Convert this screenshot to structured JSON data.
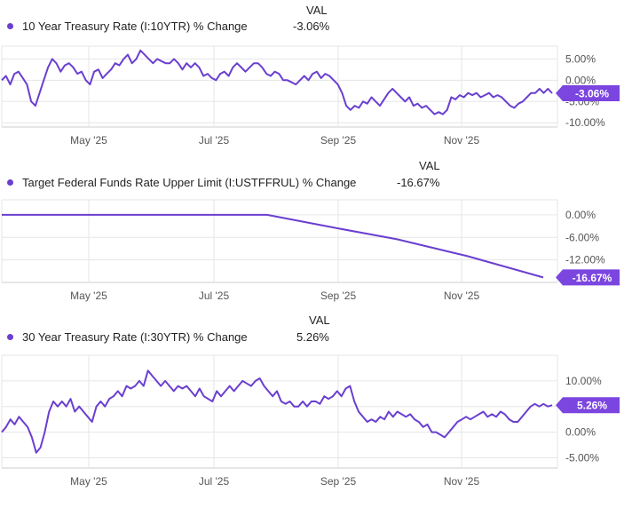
{
  "colors": {
    "line": "#6a3fd0",
    "badge": "#7b45e0",
    "grid": "#e6e6e6",
    "axis": "#555555"
  },
  "val_header": "VAL",
  "x_ticks": [
    "May '25",
    "Jul '25",
    "Sep '25",
    "Nov '25"
  ],
  "chart_data": [
    {
      "type": "line",
      "series": [
        {
          "name": "10 Year Treasury Rate (I:10YTR) % Change",
          "last_value": "-3.06%"
        }
      ],
      "y_ticks": [
        "5.00%",
        "0.00%",
        "-5.00%",
        "-10.00%"
      ],
      "y_tick_values": [
        5,
        0,
        -5,
        -10
      ],
      "ylim": [
        -11,
        8
      ],
      "x_ticks": [
        "May '25",
        "Jul '25",
        "Sep '25",
        "Nov '25"
      ],
      "values": [
        0,
        1,
        -1,
        1.5,
        2,
        0.5,
        -1,
        -5,
        -6,
        -3,
        0,
        3,
        5,
        4,
        2,
        3.5,
        4,
        3,
        1.5,
        2,
        0,
        -1,
        2,
        2.5,
        0.5,
        1.5,
        2.5,
        4,
        3.5,
        5,
        6,
        4,
        5,
        7,
        6,
        5,
        4,
        5,
        4.5,
        4,
        4,
        5,
        4,
        2.5,
        4,
        3,
        4,
        3,
        1,
        1.5,
        0.5,
        0,
        1.5,
        2,
        1,
        3,
        4,
        3,
        2,
        3,
        4,
        4,
        3,
        1.5,
        1,
        2,
        1.5,
        0,
        0,
        -0.5,
        -1,
        0,
        1,
        0,
        1.5,
        2,
        0.5,
        1.5,
        1,
        0,
        -1,
        -3,
        -6,
        -7,
        -6,
        -6.5,
        -5,
        -5.5,
        -4,
        -5,
        -6,
        -4.5,
        -3,
        -2,
        -3,
        -4,
        -5,
        -4,
        -6,
        -5.5,
        -6.5,
        -6,
        -7,
        -8,
        -7.5,
        -8,
        -7,
        -4,
        -4.5,
        -3.5,
        -4,
        -3,
        -3.5,
        -3,
        -4,
        -3.5,
        -3,
        -4,
        -3.5,
        -4,
        -5,
        -6,
        -6.5,
        -5.5,
        -5,
        -4,
        -3,
        -3,
        -2,
        -3,
        -2,
        -3.06
      ],
      "label_values": {
        "x": "",
        "y": ""
      }
    },
    {
      "type": "line",
      "series": [
        {
          "name": "Target Federal Funds Rate Upper Limit (I:USTFFRUL) % Change",
          "last_value": "-16.67%"
        }
      ],
      "y_ticks": [
        "0.00%",
        "-6.00%",
        "-12.00%"
      ],
      "y_tick_values": [
        0,
        -6,
        -12
      ],
      "ylim": [
        -18,
        4
      ],
      "x_ticks": [
        "May '25",
        "Jul '25",
        "Sep '25",
        "Nov '25"
      ],
      "points": [
        [
          0,
          0
        ],
        [
          0.49,
          0
        ],
        [
          0.61,
          -3.3
        ],
        [
          0.73,
          -6.5
        ],
        [
          0.86,
          -11
        ],
        [
          1.0,
          -16.67
        ]
      ]
    },
    {
      "type": "line",
      "series": [
        {
          "name": "30 Year Treasury Rate (I:30YTR) % Change",
          "last_value": "5.26%"
        }
      ],
      "y_ticks": [
        "10.00%",
        "5.00%",
        "0.00%",
        "-5.00%"
      ],
      "y_tick_values": [
        10,
        5,
        0,
        -5
      ],
      "ylim": [
        -7,
        15
      ],
      "x_ticks": [
        "May '25",
        "Jul '25",
        "Sep '25",
        "Nov '25"
      ],
      "values": [
        0,
        1,
        2.5,
        1.5,
        3,
        2,
        1,
        -1,
        -4,
        -3,
        0,
        4,
        6,
        5,
        6,
        5,
        6.5,
        4,
        5,
        4,
        3,
        2,
        5,
        6,
        5,
        6.5,
        7,
        8,
        7,
        9,
        8.5,
        9,
        10,
        9,
        12,
        11,
        10,
        9,
        10,
        9,
        8,
        9,
        8.5,
        9,
        8,
        7,
        8.5,
        7,
        6.5,
        6,
        8,
        7,
        8,
        9,
        8,
        9,
        10,
        9.5,
        9,
        10,
        10.5,
        9,
        8,
        7,
        8,
        6,
        5.5,
        6,
        5,
        5,
        6,
        5,
        6,
        6,
        5.5,
        7,
        6.5,
        7,
        8,
        7,
        8.5,
        9,
        6,
        4,
        3,
        2,
        2.5,
        2,
        3,
        2.5,
        4,
        3,
        4,
        3.5,
        3,
        3.5,
        2.5,
        2,
        1,
        1.5,
        0,
        0,
        -0.5,
        -1,
        0,
        1,
        2,
        2.5,
        3,
        2.5,
        3,
        3.5,
        4,
        3,
        3.5,
        3,
        4,
        3.5,
        2.5,
        2,
        2,
        3,
        4,
        5,
        5.5,
        5,
        5.5,
        5,
        5.26
      ],
      "label_values": {
        "x": "",
        "y": ""
      }
    }
  ],
  "charts": [
    {
      "legend": "10 Year Treasury Rate (I:10YTR) % Change",
      "val": "-3.06%",
      "badge": "-3.06%"
    },
    {
      "legend": "Target Federal Funds Rate Upper Limit (I:USTFFRUL) % Change",
      "val": "-16.67%",
      "badge": "-16.67%"
    },
    {
      "legend": "30 Year Treasury Rate (I:30YTR) % Change",
      "val": "5.26%",
      "badge": "5.26%"
    }
  ]
}
